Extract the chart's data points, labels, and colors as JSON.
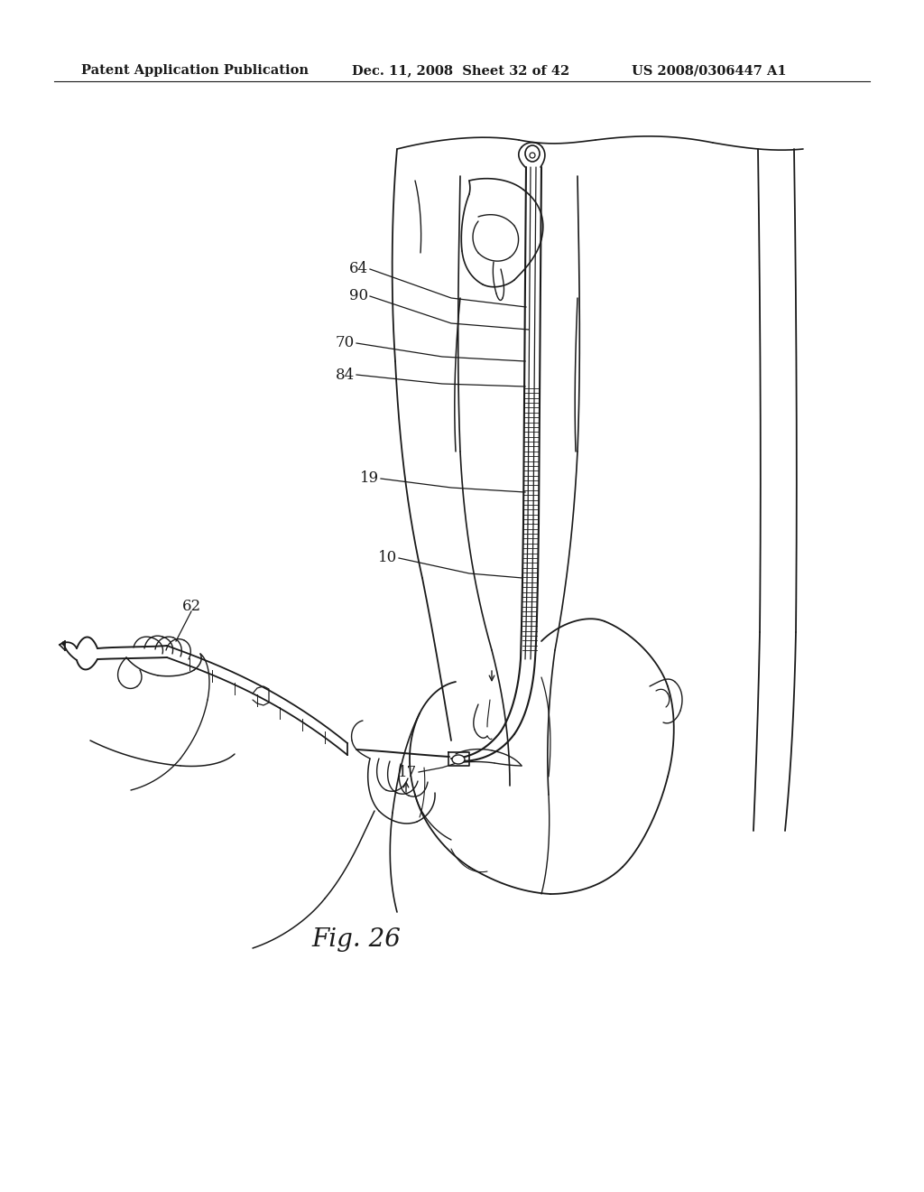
{
  "header_left": "Patent Application Publication",
  "header_center": "Dec. 11, 2008  Sheet 32 of 42",
  "header_right": "US 2008/0306447 A1",
  "figure_label": "Fig. 26",
  "bg_color": "#ffffff",
  "line_color": "#1a1a1a"
}
